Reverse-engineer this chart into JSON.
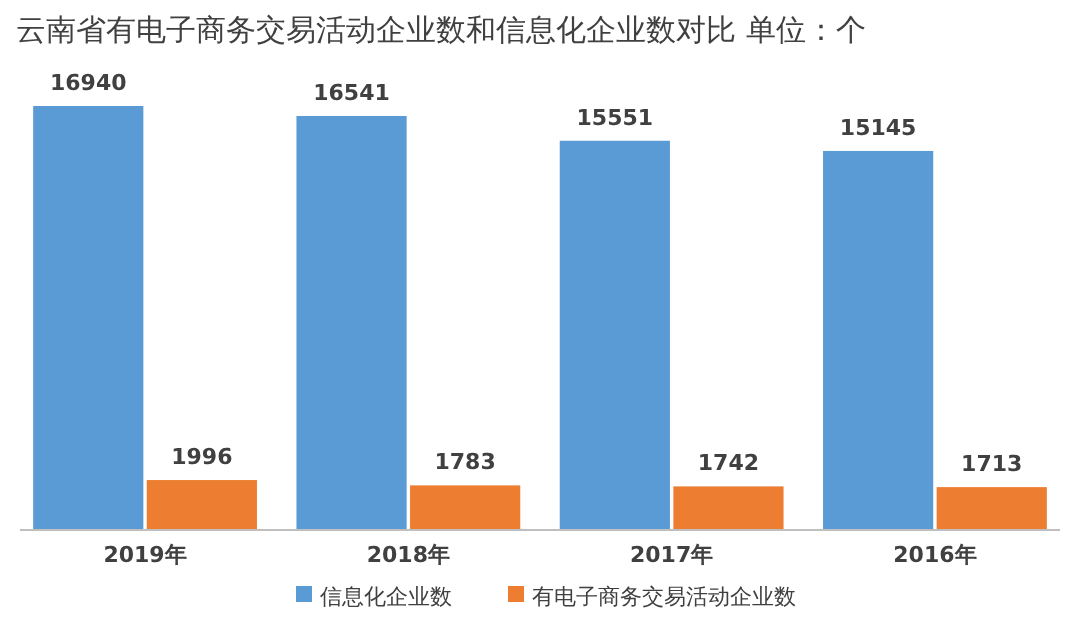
{
  "chart_data": {
    "type": "bar",
    "title": "云南省有电子商务交易活动企业数和信息化企业数对比  单位：个",
    "categories": [
      "2019年",
      "2018年",
      "2017年",
      "2016年"
    ],
    "series": [
      {
        "name": "信息化企业数",
        "color": "#5b9bd5",
        "values": [
          16940,
          16541,
          15551,
          15145
        ]
      },
      {
        "name": "有电子商务交易活动企业数",
        "color": "#ed7d31",
        "values": [
          1996,
          1783,
          1742,
          1713
        ]
      }
    ],
    "data_labels": true,
    "legend": "bottom",
    "grid": false
  }
}
